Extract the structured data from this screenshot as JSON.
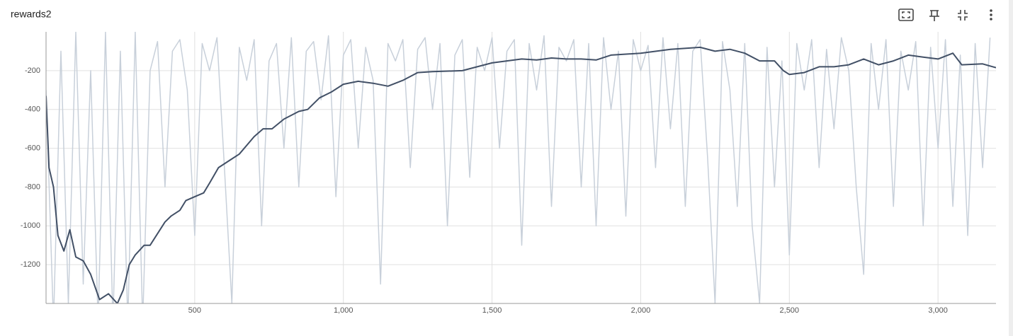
{
  "chart_data": {
    "type": "line",
    "title": "rewards2",
    "xlim": [
      0,
      3195
    ],
    "ylim": [
      -1400,
      0
    ],
    "xticks": [
      {
        "value": 500,
        "label": "500"
      },
      {
        "value": 1000,
        "label": "1,000"
      },
      {
        "value": 1500,
        "label": "1,500"
      },
      {
        "value": 2000,
        "label": "2,000"
      },
      {
        "value": 2500,
        "label": "2,500"
      },
      {
        "value": 3000,
        "label": "3,000"
      }
    ],
    "yticks": [
      -200,
      -400,
      -600,
      -800,
      -1000,
      -1200
    ],
    "grid": true,
    "series": [
      {
        "color": "#c8d0da",
        "x": [
          0,
          25,
          50,
          75,
          100,
          125,
          150,
          175,
          200,
          225,
          250,
          275,
          300,
          325,
          350,
          375,
          400,
          425,
          450,
          475,
          500,
          525,
          550,
          575,
          600,
          625,
          650,
          675,
          700,
          725,
          750,
          775,
          800,
          825,
          850,
          875,
          900,
          925,
          950,
          975,
          1000,
          1025,
          1050,
          1075,
          1100,
          1125,
          1150,
          1175,
          1200,
          1225,
          1250,
          1275,
          1300,
          1325,
          1350,
          1375,
          1400,
          1425,
          1450,
          1475,
          1500,
          1525,
          1550,
          1575,
          1600,
          1625,
          1650,
          1675,
          1700,
          1725,
          1750,
          1775,
          1800,
          1825,
          1850,
          1875,
          1900,
          1925,
          1950,
          1975,
          2000,
          2025,
          2050,
          2075,
          2100,
          2125,
          2150,
          2175,
          2200,
          2225,
          2250,
          2275,
          2300,
          2325,
          2350,
          2375,
          2400,
          2425,
          2450,
          2475,
          2500,
          2525,
          2550,
          2575,
          2600,
          2625,
          2650,
          2675,
          2700,
          2725,
          2750,
          2775,
          2800,
          2825,
          2850,
          2875,
          2900,
          2925,
          2950,
          2975,
          3000,
          3025,
          3050,
          3075,
          3100,
          3125,
          3150,
          3175
        ],
        "values": [
          -300,
          -1500,
          -100,
          -1400,
          0,
          -1300,
          -200,
          -1500,
          0,
          -1500,
          -100,
          -1500,
          0,
          -1500,
          -200,
          -50,
          -800,
          -100,
          -40,
          -300,
          -1050,
          -60,
          -200,
          -30,
          -700,
          -1400,
          -80,
          -250,
          -40,
          -1000,
          -150,
          -60,
          -600,
          -30,
          -800,
          -100,
          -50,
          -350,
          -20,
          -850,
          -120,
          -40,
          -600,
          -80,
          -250,
          -1300,
          -60,
          -150,
          -40,
          -700,
          -90,
          -30,
          -400,
          -60,
          -1000,
          -120,
          -40,
          -750,
          -80,
          -200,
          -30,
          -600,
          -100,
          -40,
          -1100,
          -60,
          -300,
          -20,
          -900,
          -80,
          -150,
          -40,
          -800,
          -60,
          -1000,
          -30,
          -400,
          -100,
          -950,
          -40,
          -200,
          -70,
          -700,
          -30,
          -500,
          -60,
          -900,
          -100,
          -40,
          -650,
          -1400,
          -50,
          -300,
          -900,
          -60,
          -1000,
          -1400,
          -80,
          -800,
          -150,
          -1150,
          -60,
          -300,
          -40,
          -700,
          -90,
          -500,
          -30,
          -200,
          -800,
          -1250,
          -60,
          -400,
          -40,
          -900,
          -100,
          -300,
          -50,
          -1000,
          -80,
          -600,
          -40,
          -900,
          -120,
          -1050,
          -60,
          -700,
          -30
        ]
      },
      {
        "color": "#425066",
        "x": [
          0,
          10,
          25,
          40,
          60,
          80,
          100,
          125,
          150,
          180,
          210,
          240,
          260,
          280,
          300,
          330,
          350,
          400,
          420,
          450,
          470,
          500,
          530,
          550,
          580,
          620,
          650,
          700,
          730,
          760,
          800,
          850,
          880,
          920,
          960,
          1000,
          1050,
          1100,
          1150,
          1200,
          1250,
          1300,
          1400,
          1450,
          1500,
          1550,
          1600,
          1650,
          1700,
          1750,
          1800,
          1850,
          1900,
          2000,
          2100,
          2200,
          2250,
          2300,
          2350,
          2400,
          2450,
          2480,
          2500,
          2550,
          2600,
          2650,
          2700,
          2750,
          2800,
          2850,
          2900,
          2950,
          3000,
          3050,
          3080,
          3150,
          3195
        ],
        "values": [
          -330,
          -700,
          -800,
          -1050,
          -1130,
          -1020,
          -1160,
          -1180,
          -1250,
          -1380,
          -1350,
          -1400,
          -1330,
          -1200,
          -1150,
          -1100,
          -1100,
          -980,
          -950,
          -920,
          -870,
          -850,
          -830,
          -780,
          -700,
          -660,
          -630,
          -540,
          -500,
          -500,
          -450,
          -410,
          -400,
          -340,
          -310,
          -270,
          -255,
          -265,
          -280,
          -250,
          -210,
          -205,
          -200,
          -180,
          -160,
          -150,
          -140,
          -145,
          -135,
          -140,
          -140,
          -145,
          -120,
          -110,
          -90,
          -80,
          -100,
          -90,
          -110,
          -150,
          -150,
          -200,
          -220,
          -210,
          -180,
          -180,
          -170,
          -140,
          -170,
          -150,
          -120,
          -130,
          -140,
          -110,
          -170,
          -165,
          -185
        ]
      }
    ]
  }
}
